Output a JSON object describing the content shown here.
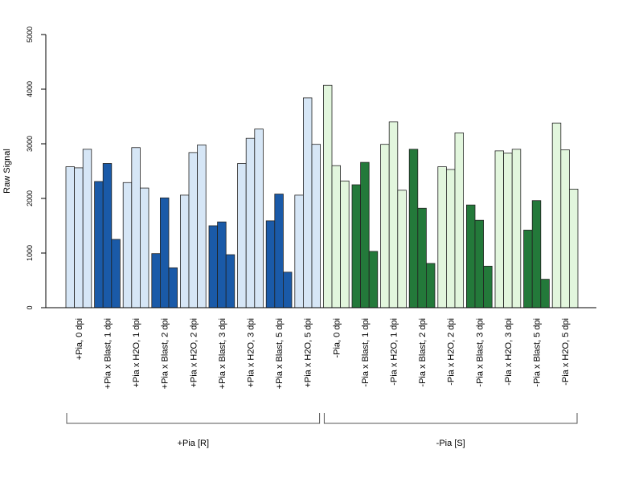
{
  "chart_data": {
    "type": "bar",
    "ylabel": "Raw Signal",
    "ylim": [
      0,
      5000
    ],
    "yticks": [
      0,
      1000,
      2000,
      3000,
      4000,
      5000
    ],
    "grid": false,
    "legend": "none",
    "colors": {
      "pia_plus_light": "#d6e6f6",
      "pia_plus_dark": "#1a5aa8",
      "pia_minus_light": "#e2f6dd",
      "pia_minus_dark": "#23793a",
      "bar_outline": "#222222"
    },
    "categories": [
      {
        "label": "+Pia, 0 dpi",
        "shade": "pia_plus_light",
        "values": [
          2580,
          2560,
          2900
        ]
      },
      {
        "label": "+Pia x Blast, 1 dpi",
        "shade": "pia_plus_dark",
        "values": [
          2310,
          2640,
          1250
        ]
      },
      {
        "label": "+Pia x H2O, 1 dpi",
        "shade": "pia_plus_light",
        "values": [
          2290,
          2930,
          2190
        ]
      },
      {
        "label": "+Pia x Blast, 2 dpi",
        "shade": "pia_plus_dark",
        "values": [
          990,
          2010,
          730
        ]
      },
      {
        "label": "+Pia x H2O, 2 dpi",
        "shade": "pia_plus_light",
        "values": [
          2060,
          2840,
          2980
        ]
      },
      {
        "label": "+Pia x Blast, 3 dpi",
        "shade": "pia_plus_dark",
        "values": [
          1500,
          1570,
          970
        ]
      },
      {
        "label": "+Pia x H2O, 3 dpi",
        "shade": "pia_plus_light",
        "values": [
          2640,
          3100,
          3270
        ]
      },
      {
        "label": "+Pia x Blast, 5 dpi",
        "shade": "pia_plus_dark",
        "values": [
          1590,
          2080,
          650
        ]
      },
      {
        "label": "+Pia x H2O, 5 dpi",
        "shade": "pia_plus_light",
        "values": [
          2060,
          3840,
          2990
        ]
      },
      {
        "label": "-Pia, 0 dpi",
        "shade": "pia_minus_light",
        "values": [
          4070,
          2600,
          2320
        ]
      },
      {
        "label": "-Pia x Blast, 1 dpi",
        "shade": "pia_minus_dark",
        "values": [
          2250,
          2660,
          1030
        ]
      },
      {
        "label": "-Pia x H2O, 1 dpi",
        "shade": "pia_minus_light",
        "values": [
          2990,
          3400,
          2150
        ]
      },
      {
        "label": "-Pia x Blast, 2 dpi",
        "shade": "pia_minus_dark",
        "values": [
          2900,
          1820,
          810
        ]
      },
      {
        "label": "-Pia x H2O, 2 dpi",
        "shade": "pia_minus_light",
        "values": [
          2580,
          2530,
          3200
        ]
      },
      {
        "label": "-Pia x Blast, 3 dpi",
        "shade": "pia_minus_dark",
        "values": [
          1880,
          1600,
          760
        ]
      },
      {
        "label": "-Pia x H2O, 3 dpi",
        "shade": "pia_minus_light",
        "values": [
          2870,
          2830,
          2900
        ]
      },
      {
        "label": "-Pia x Blast, 5 dpi",
        "shade": "pia_minus_dark",
        "values": [
          1420,
          1960,
          520
        ]
      },
      {
        "label": "-Pia x H2O, 5 dpi",
        "shade": "pia_minus_light",
        "values": [
          3380,
          2890,
          2170
        ]
      }
    ],
    "groups": [
      {
        "label": "+Pia [R]",
        "first_category": 0,
        "last_category": 8
      },
      {
        "label": "-Pia [S]",
        "first_category": 9,
        "last_category": 17
      }
    ]
  }
}
